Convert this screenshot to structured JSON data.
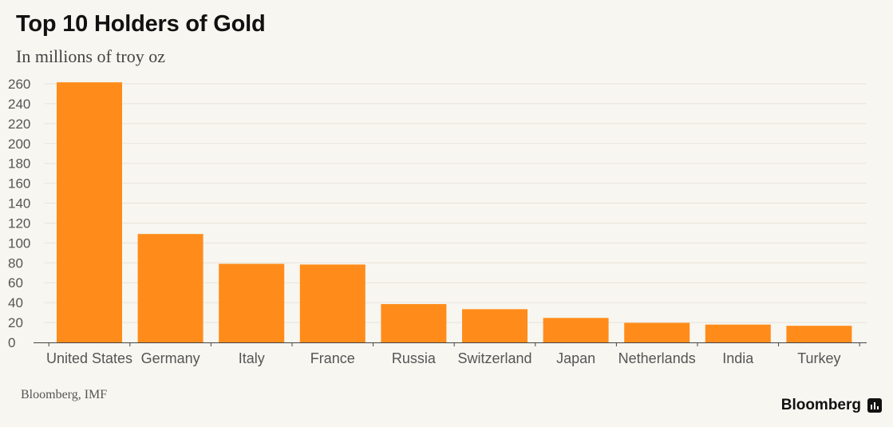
{
  "chart_data": {
    "type": "bar",
    "title": "Top 10 Holders of Gold",
    "subtitle": "In millions of troy oz",
    "xlabel": "",
    "ylabel": "",
    "categories": [
      "United States",
      "Germany",
      "Italy",
      "France",
      "Russia",
      "Switzerland",
      "Japan",
      "Netherlands",
      "India",
      "Turkey"
    ],
    "values": [
      261.5,
      109,
      79,
      78.3,
      38.5,
      33.4,
      24.6,
      19.7,
      17.9,
      16.7
    ],
    "ylim": [
      0,
      260
    ],
    "yticks": [
      0,
      20,
      40,
      60,
      80,
      100,
      120,
      140,
      160,
      180,
      200,
      220,
      240,
      260
    ],
    "grid": true,
    "bar_color": "#ff8c1a",
    "source": "Bloomberg, IMF"
  },
  "brand": {
    "name": "Bloomberg"
  }
}
